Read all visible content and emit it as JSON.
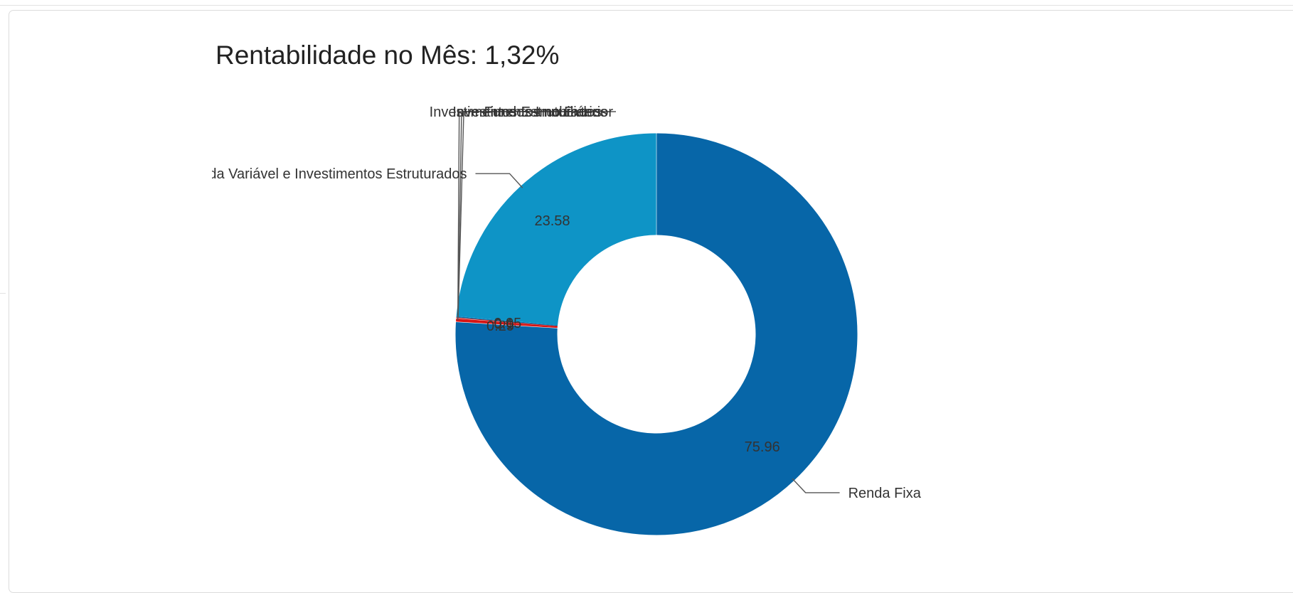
{
  "chart_data": {
    "type": "pie",
    "variant": "donut",
    "title": "Rentabilidade no Mês: 1,32%",
    "slices": [
      {
        "label": "Renda Fixa",
        "value": 75.96,
        "value_label": "75.96",
        "color": "#0766a8"
      },
      {
        "label": "Investimentos Estruturados",
        "value": 0.29,
        "value_label": "0.29",
        "color": "#d61515"
      },
      {
        "label": "Fundos Imobiliários",
        "value": 0.1,
        "value_label": "0.1",
        "color": "#b51414"
      },
      {
        "label": "Investimentos no Exterior",
        "value": 0.05,
        "value_label": "0.05",
        "color": "#0b86c2"
      },
      {
        "label": "Renda Variável e Investimentos Estruturados",
        "value": 23.58,
        "value_label": "23.58",
        "color": "#0e94c6"
      }
    ],
    "legend": "none",
    "data_labels": "inside",
    "category_labels": "outside-with-leader-lines"
  }
}
